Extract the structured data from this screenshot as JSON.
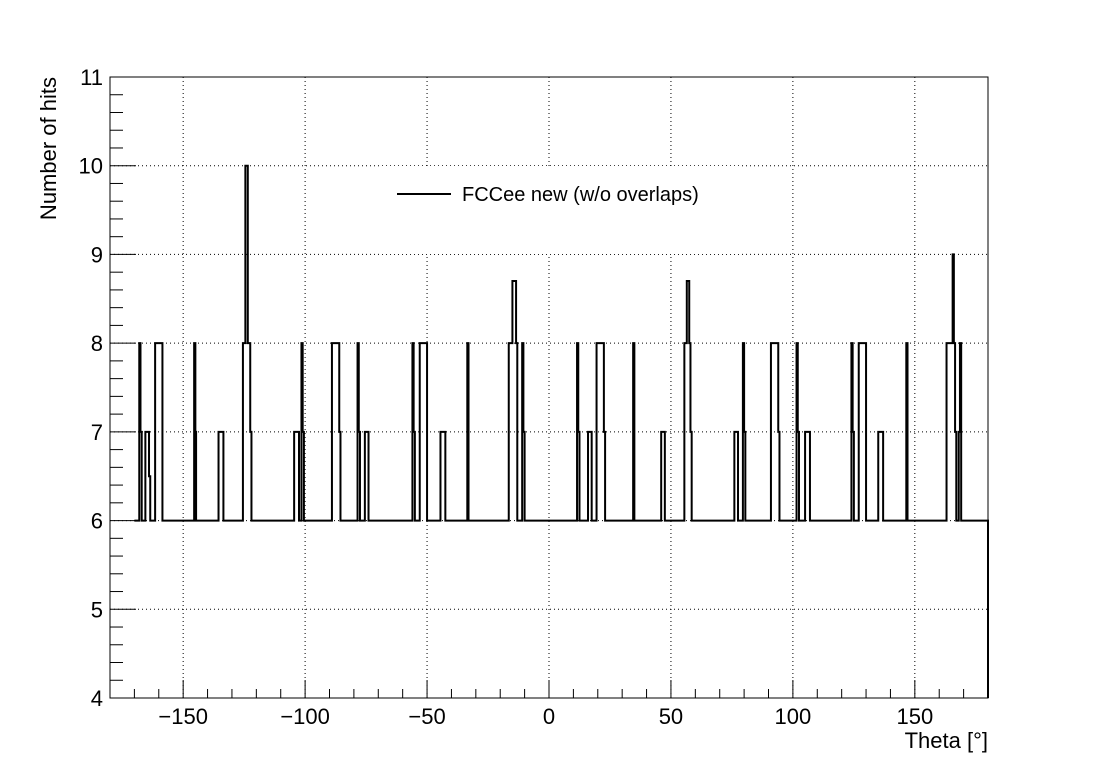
{
  "chart_data": {
    "type": "line",
    "title": "",
    "xlabel": "Theta [°]",
    "ylabel": "Number of hits",
    "xlim": [
      -180,
      180
    ],
    "ylim": [
      4,
      11
    ],
    "x_ticks": [
      -150,
      -100,
      -50,
      0,
      50,
      100,
      150
    ],
    "x_tick_labels": [
      "−150",
      "−100",
      "−50",
      "0",
      "50",
      "100",
      "150"
    ],
    "y_ticks": [
      4,
      5,
      6,
      7,
      8,
      9,
      10,
      11
    ],
    "y_tick_labels": [
      "4",
      "5",
      "6",
      "7",
      "8",
      "9",
      "10",
      "11"
    ],
    "grid": true,
    "legend_position": "top-center",
    "line_color": "#000000",
    "series": [
      {
        "name": "FCCee new (w/o overlaps)",
        "baseline": 6,
        "segments": [
          [
            -168.0,
            -167.5,
            8
          ],
          [
            -167.5,
            -167.0,
            7
          ],
          [
            -165.5,
            -165.0,
            7
          ],
          [
            -165.0,
            -164.0,
            7
          ],
          [
            -164.0,
            -163.5,
            6.5
          ],
          [
            -161.5,
            -158.5,
            8
          ],
          [
            -145.5,
            -145.0,
            8
          ],
          [
            -145.0,
            -144.7,
            7
          ],
          [
            -135.5,
            -133.5,
            7
          ],
          [
            -125.5,
            -124.5,
            8
          ],
          [
            -124.5,
            -123.5,
            10
          ],
          [
            -123.5,
            -122.5,
            8
          ],
          [
            -122.5,
            -122.0,
            7
          ],
          [
            -104.5,
            -102.5,
            7
          ],
          [
            -101.5,
            -101.0,
            8
          ],
          [
            -101.0,
            -100.5,
            7
          ],
          [
            -89.0,
            -86.0,
            8
          ],
          [
            -86.0,
            -85.5,
            7
          ],
          [
            -78.5,
            -78.0,
            8
          ],
          [
            -78.0,
            -77.5,
            7
          ],
          [
            -75.5,
            -74.0,
            7
          ],
          [
            -56.0,
            -55.5,
            8
          ],
          [
            -55.5,
            -55.0,
            7
          ],
          [
            -53.0,
            -50.0,
            8
          ],
          [
            -44.5,
            -42.5,
            7
          ],
          [
            -33.5,
            -33.0,
            8
          ],
          [
            -16.5,
            -15.0,
            8
          ],
          [
            -15.0,
            -14.5,
            8.7
          ],
          [
            -14.5,
            -13.5,
            8.7
          ],
          [
            -13.5,
            -13.0,
            8
          ],
          [
            -11.0,
            -10.5,
            8
          ],
          [
            -10.5,
            -10.0,
            7
          ],
          [
            11.5,
            12.0,
            8
          ],
          [
            12.0,
            12.5,
            7
          ],
          [
            16.0,
            17.5,
            7
          ],
          [
            19.5,
            22.5,
            8
          ],
          [
            22.5,
            23.0,
            7
          ],
          [
            34.5,
            35.0,
            8
          ],
          [
            46.0,
            47.5,
            7
          ],
          [
            55.5,
            56.5,
            8
          ],
          [
            56.5,
            57.5,
            8.7
          ],
          [
            57.5,
            58.0,
            8
          ],
          [
            58.0,
            58.5,
            7
          ],
          [
            76.0,
            77.5,
            7
          ],
          [
            79.5,
            80.0,
            8
          ],
          [
            80.0,
            80.5,
            7
          ],
          [
            91.0,
            94.0,
            8
          ],
          [
            94.0,
            94.5,
            7
          ],
          [
            101.5,
            102.0,
            8
          ],
          [
            102.0,
            102.5,
            7
          ],
          [
            105.0,
            107.0,
            7
          ],
          [
            124.0,
            124.5,
            8
          ],
          [
            124.5,
            125.0,
            7
          ],
          [
            127.0,
            130.0,
            8
          ],
          [
            135.0,
            137.0,
            7
          ],
          [
            146.5,
            147.0,
            8
          ],
          [
            163.0,
            165.5,
            8
          ],
          [
            165.5,
            166.0,
            9
          ],
          [
            166.0,
            166.5,
            8
          ],
          [
            166.5,
            167.0,
            7
          ],
          [
            168.0,
            168.5,
            7
          ],
          [
            168.5,
            169.0,
            8
          ]
        ]
      }
    ]
  }
}
